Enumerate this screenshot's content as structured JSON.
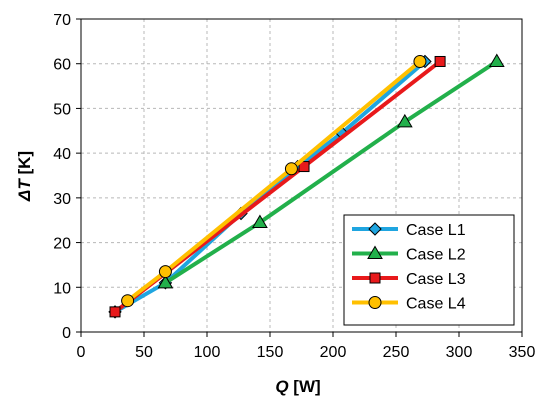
{
  "chart_data": {
    "type": "line",
    "xlabel": {
      "symbol": "Q",
      "unit": " [W]"
    },
    "ylabel": {
      "symbol": "ΔT",
      "unit": " [K]"
    },
    "xlim": [
      0,
      350
    ],
    "ylim": [
      0,
      70
    ],
    "x_ticks": [
      "0",
      "50",
      "100",
      "150",
      "200",
      "250",
      "300",
      "350"
    ],
    "y_ticks": [
      "0",
      "10",
      "20",
      "30",
      "40",
      "50",
      "60",
      "70"
    ],
    "grid": "dashed",
    "legend_position": "bottom-right",
    "series": [
      {
        "name": "Case L1",
        "color": "#1fa5e0",
        "marker": "diamond",
        "x": [
          27,
          67,
          127,
          172,
          207,
          273
        ],
        "y": [
          4.5,
          11,
          26.5,
          37,
          44.5,
          60.5
        ]
      },
      {
        "name": "Case L2",
        "color": "#22b04b",
        "marker": "triangle",
        "x": [
          67,
          142,
          257,
          330
        ],
        "y": [
          11,
          24.5,
          47,
          60.5
        ]
      },
      {
        "name": "Case L3",
        "color": "#e8191b",
        "marker": "square",
        "x": [
          27,
          177,
          285
        ],
        "y": [
          4.5,
          37,
          60.5
        ]
      },
      {
        "name": "Case L4",
        "color": "#ffc000",
        "marker": "circle",
        "x": [
          37,
          67,
          167,
          269
        ],
        "y": [
          7,
          13.5,
          36.5,
          60.5
        ]
      }
    ]
  }
}
